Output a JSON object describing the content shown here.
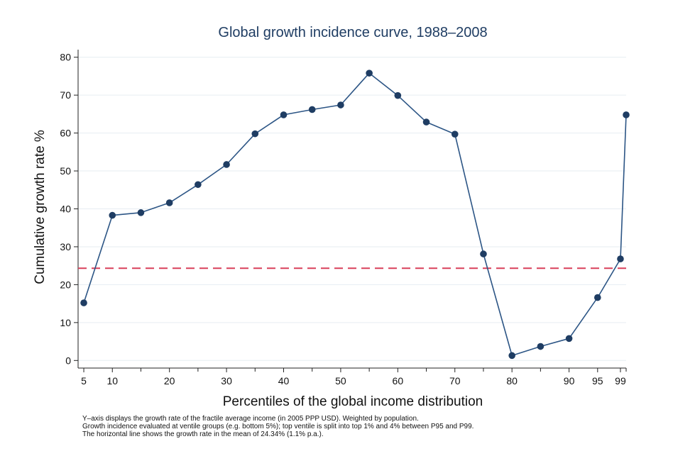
{
  "chart_data": {
    "type": "line",
    "title": "Global growth incidence curve, 1988–2008",
    "xlabel": "Percentiles of the global income distribution",
    "ylabel": "Cumulative growth rate %",
    "xlim": [
      4,
      100
    ],
    "ylim": [
      -2,
      82
    ],
    "xticks": [
      5,
      10,
      20,
      30,
      40,
      50,
      60,
      70,
      80,
      90,
      95,
      99
    ],
    "yticks": [
      0,
      10,
      20,
      30,
      40,
      50,
      60,
      70,
      80
    ],
    "grid": true,
    "legend": "none",
    "series": [
      {
        "x": [
          5,
          10,
          15,
          20,
          25,
          30,
          35,
          40,
          45,
          50,
          55,
          60,
          65,
          70,
          75,
          80,
          85,
          90,
          95,
          99,
          100
        ],
        "y": [
          15.2,
          38.3,
          39.0,
          41.6,
          46.4,
          51.7,
          59.8,
          64.8,
          66.2,
          67.4,
          75.8,
          69.9,
          62.9,
          59.7,
          28.1,
          1.3,
          3.7,
          5.8,
          16.6,
          26.8,
          64.8
        ]
      }
    ],
    "reference_line": {
      "y": 24.34
    },
    "colors": {
      "line": "#2c5585",
      "marker": "#1f3d63",
      "reference": "#d9405a",
      "grid": "#e6edf2",
      "title": "#1f3d63"
    },
    "notes": [
      "Y–axis displays the growth rate of the fractile average income (in 2005 PPP USD). Weighted by population.",
      "Growth incidence evaluated at ventile groups (e.g. bottom 5%); top ventile is split into top 1% and 4% between P95 and P99.",
      "The horizontal line shows the growth rate in the mean of 24.34% (1.1% p.a.)."
    ]
  }
}
